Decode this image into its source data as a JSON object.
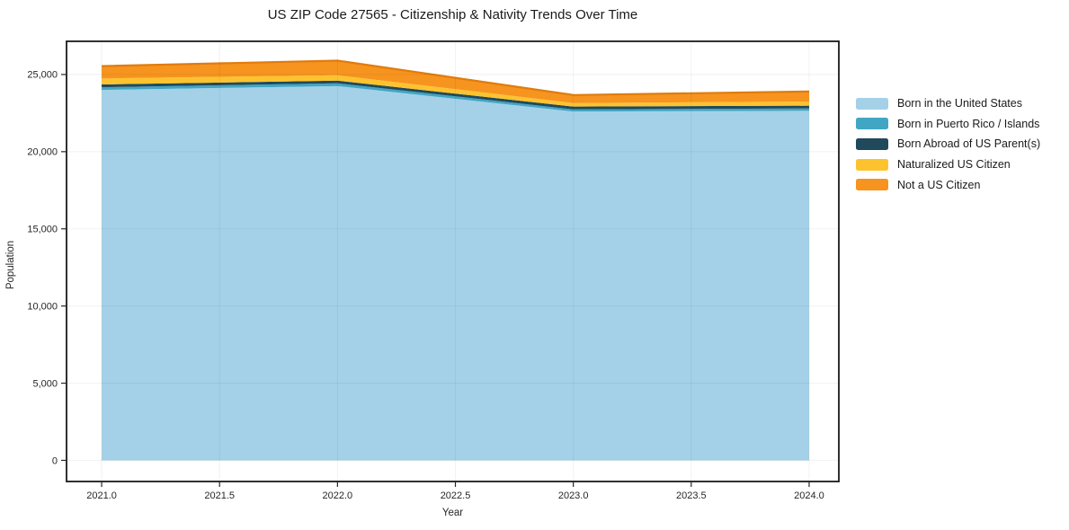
{
  "title": "US ZIP Code 27565 - Citizenship & Nativity Trends Over Time",
  "chart_data": {
    "type": "area",
    "stacked": true,
    "title": "US ZIP Code 27565 - Citizenship & Nativity Trends Over Time",
    "xlabel": "Year",
    "ylabel": "Population",
    "x": [
      2021,
      2022,
      2023,
      2024
    ],
    "series": [
      {
        "name": "Born in the United States",
        "color": "#a4d1e8",
        "values": [
          24000,
          24250,
          22600,
          22650
        ]
      },
      {
        "name": "Born in Puerto Rico / Islands",
        "color": "#41a6c4",
        "values": [
          175,
          180,
          140,
          150
        ]
      },
      {
        "name": "Born Abroad of US Parent(s)",
        "color": "#20495c",
        "values": [
          180,
          170,
          180,
          180
        ]
      },
      {
        "name": "Naturalized US Citizen",
        "color": "#fdc32f",
        "values": [
          390,
          350,
          230,
          270
        ]
      },
      {
        "name": "Not a US Citizen",
        "color": "#f6941f",
        "values": [
          800,
          950,
          520,
          650
        ],
        "edge_color": "#e07c0c"
      }
    ],
    "x_ticks": [
      "2021.0",
      "2021.5",
      "2022.0",
      "2022.5",
      "2023.0",
      "2023.5",
      "2024.0"
    ],
    "x_tick_values": [
      2021,
      2021.5,
      2022,
      2022.5,
      2023,
      2023.5,
      2024
    ],
    "y_ticks": [
      "0",
      "5,000",
      "10,000",
      "15,000",
      "20,000",
      "25,000"
    ],
    "y_tick_values": [
      0,
      5000,
      10000,
      15000,
      20000,
      25000
    ],
    "xlim": [
      2020.851,
      2024.126
    ],
    "ylim": [
      -1370,
      27150
    ],
    "grid": true,
    "grid_color": "rgba(0,0,0,0.05)",
    "frame_color": "#1a1a1a",
    "tick_color": "#262626",
    "legend_position": "right-outside"
  }
}
